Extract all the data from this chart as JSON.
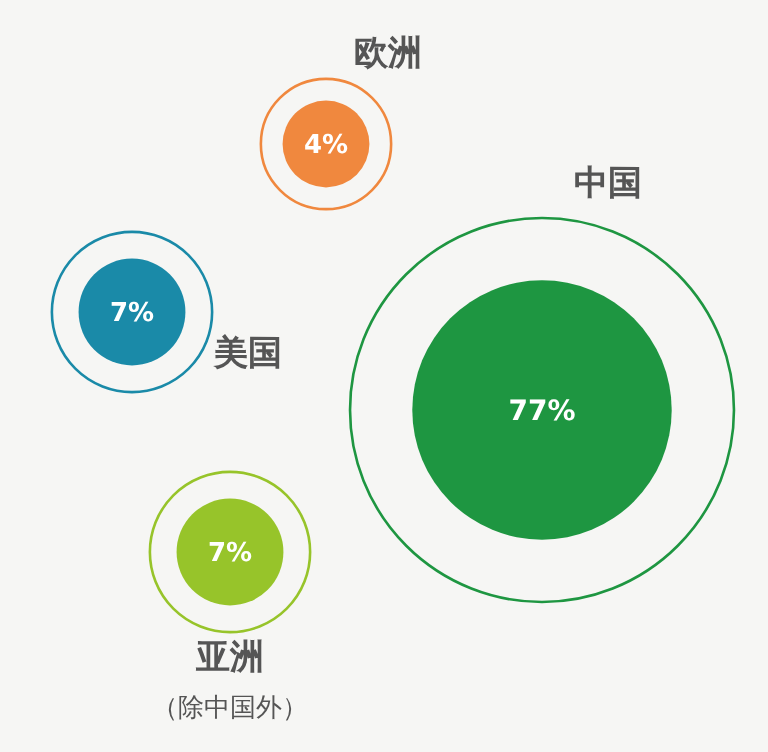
{
  "chart_data": {
    "type": "other",
    "categories": [
      "欧洲",
      "美国",
      "中国",
      "亚洲（除中国外）"
    ],
    "values": [
      4,
      7,
      77,
      7
    ],
    "value_labels": [
      "4%",
      "7%",
      "77%",
      "7%"
    ],
    "colors": [
      "#f0883e",
      "#1a8aa8",
      "#1e9641",
      "#97c42a"
    ]
  }
}
